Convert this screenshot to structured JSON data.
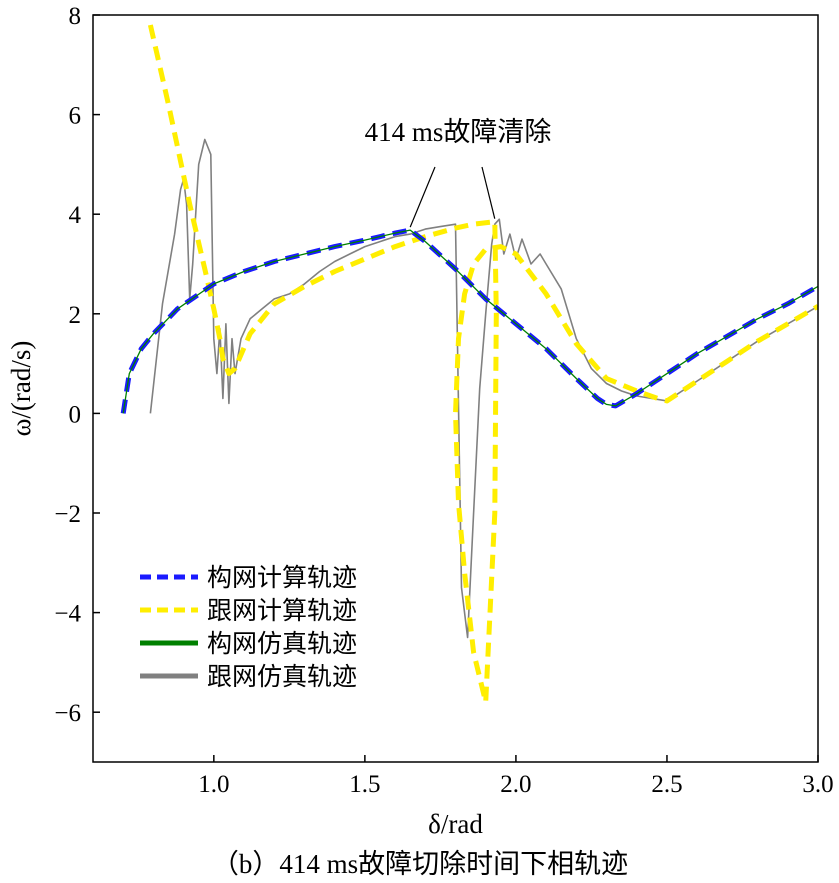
{
  "chart_data": {
    "type": "line",
    "caption": "（b）414 ms故障切除时间下相轨迹",
    "xlabel": "δ/rad",
    "ylabel": "ω/(rad/s)",
    "xlim": [
      0.6,
      3.0
    ],
    "ylim": [
      -7,
      8
    ],
    "xticks": [
      "1.0",
      "1.5",
      "2.0",
      "2.5",
      "3.0"
    ],
    "yticks": [
      "−6",
      "−4",
      "−2",
      "0",
      "2",
      "4",
      "6",
      "8"
    ],
    "annotation": {
      "text": "414 ms故障清除",
      "targets": [
        [
          1.65,
          3.68
        ],
        [
          1.93,
          3.85
        ]
      ]
    },
    "legend_position": "bottom-left",
    "grid": false,
    "colors": {
      "gfm_calc": "#1a1aff",
      "gfl_calc": "#ffee00",
      "gfm_sim": "#008000",
      "gfl_sim": "#808080"
    },
    "series": [
      {
        "name": "构网计算轨迹",
        "style": "dashed",
        "x": [
          0.7,
          0.72,
          0.76,
          0.8,
          0.88,
          1.0,
          1.1,
          1.2,
          1.3,
          1.4,
          1.5,
          1.6,
          1.65,
          1.7,
          1.8,
          1.9,
          2.0,
          2.1,
          2.2,
          2.27,
          2.3,
          2.33,
          2.4,
          2.5,
          2.6,
          2.7,
          2.8,
          2.9,
          3.0
        ],
        "y": [
          0.0,
          0.8,
          1.3,
          1.6,
          2.1,
          2.6,
          2.85,
          3.05,
          3.2,
          3.35,
          3.48,
          3.62,
          3.68,
          3.45,
          2.9,
          2.3,
          1.8,
          1.3,
          0.7,
          0.3,
          0.18,
          0.15,
          0.4,
          0.8,
          1.2,
          1.55,
          1.9,
          2.2,
          2.55
        ]
      },
      {
        "name": "跟网计算轨迹",
        "style": "dashed",
        "x": [
          0.79,
          0.85,
          0.92,
          0.97,
          1.0,
          1.02,
          1.03,
          1.05,
          1.07,
          1.12,
          1.2,
          1.3,
          1.4,
          1.5,
          1.6,
          1.7,
          1.8,
          1.86,
          1.93,
          1.935,
          1.93,
          1.9,
          1.86,
          1.83,
          1.81,
          1.8,
          1.81,
          1.83,
          1.86,
          1.9,
          1.95,
          2.0,
          2.1,
          2.2,
          2.3,
          2.4,
          2.47,
          2.5,
          2.6,
          2.7,
          2.8,
          2.9,
          3.0
        ],
        "y": [
          7.8,
          6.2,
          4.2,
          2.9,
          2.1,
          1.5,
          1.1,
          0.8,
          0.9,
          1.6,
          2.2,
          2.55,
          2.85,
          3.1,
          3.35,
          3.55,
          3.72,
          3.8,
          3.85,
          2.0,
          -2.0,
          -5.8,
          -4.8,
          -3.2,
          -1.8,
          0.0,
          1.5,
          2.4,
          3.0,
          3.3,
          3.35,
          3.2,
          2.4,
          1.4,
          0.7,
          0.45,
          0.3,
          0.25,
          0.65,
          1.05,
          1.45,
          1.8,
          2.15
        ]
      },
      {
        "name": "构网仿真轨迹",
        "style": "solid",
        "x": [
          0.7,
          0.72,
          0.76,
          0.8,
          0.88,
          1.0,
          1.1,
          1.2,
          1.3,
          1.4,
          1.5,
          1.6,
          1.65,
          1.7,
          1.8,
          1.9,
          2.0,
          2.1,
          2.2,
          2.27,
          2.3,
          2.33,
          2.4,
          2.5,
          2.6,
          2.7,
          2.8,
          2.9,
          3.0
        ],
        "y": [
          0.0,
          0.8,
          1.3,
          1.6,
          2.1,
          2.6,
          2.85,
          3.05,
          3.2,
          3.35,
          3.48,
          3.62,
          3.68,
          3.45,
          2.9,
          2.3,
          1.8,
          1.3,
          0.7,
          0.3,
          0.18,
          0.15,
          0.4,
          0.8,
          1.2,
          1.55,
          1.9,
          2.2,
          2.55
        ]
      },
      {
        "name": "跟网仿真轨迹",
        "style": "solid",
        "x": [
          0.79,
          0.83,
          0.87,
          0.89,
          0.9,
          0.91,
          0.92,
          0.93,
          0.95,
          0.97,
          0.99,
          1.0,
          1.01,
          1.02,
          1.03,
          1.04,
          1.05,
          1.06,
          1.07,
          1.09,
          1.12,
          1.16,
          1.2,
          1.25,
          1.3,
          1.35,
          1.4,
          1.45,
          1.5,
          1.55,
          1.6,
          1.65,
          1.7,
          1.75,
          1.8,
          1.82,
          1.84,
          1.86,
          1.88,
          1.9,
          1.92,
          1.93,
          1.945,
          1.96,
          1.98,
          2.0,
          2.02,
          2.05,
          2.08,
          2.1,
          2.15,
          2.2,
          2.25,
          2.3,
          2.35,
          2.4,
          2.45,
          2.5,
          2.6,
          2.7,
          2.8,
          2.9,
          3.0
        ],
        "y": [
          0.0,
          2.2,
          3.6,
          4.5,
          4.7,
          4.2,
          2.3,
          3.0,
          5.0,
          5.5,
          5.2,
          1.5,
          0.8,
          1.7,
          0.3,
          1.8,
          0.2,
          1.5,
          0.8,
          1.5,
          1.9,
          2.1,
          2.3,
          2.4,
          2.6,
          2.85,
          3.05,
          3.2,
          3.35,
          3.45,
          3.55,
          3.6,
          3.7,
          3.75,
          3.8,
          -3.5,
          -4.5,
          -2.0,
          0.5,
          2.0,
          3.4,
          3.8,
          3.9,
          3.2,
          3.6,
          3.1,
          3.5,
          3.0,
          3.2,
          3.0,
          2.5,
          1.5,
          0.9,
          0.6,
          0.45,
          0.35,
          0.3,
          0.25,
          0.65,
          1.05,
          1.45,
          1.8,
          2.15
        ]
      }
    ]
  }
}
